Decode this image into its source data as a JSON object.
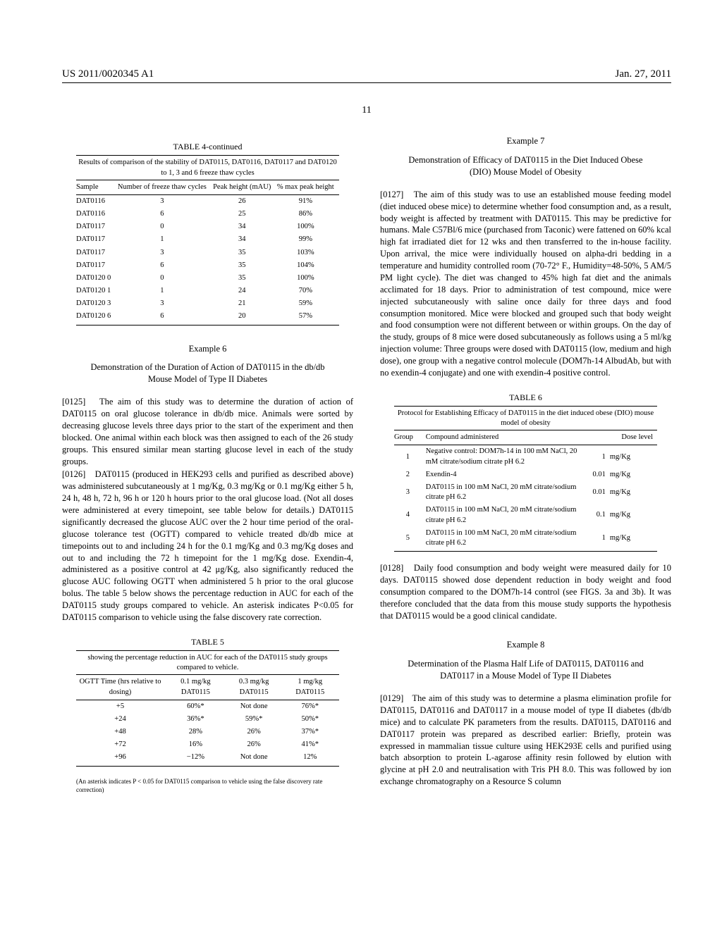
{
  "header": {
    "left": "US 2011/0020345 A1",
    "right": "Jan. 27, 2011"
  },
  "page_number": "11",
  "left_col": {
    "table4": {
      "caption": "TABLE 4-continued",
      "subcaption": "Results of comparison of the stability of DAT0115, DAT0116, DAT0117 and DAT0120 to 1, 3 and 6 freeze thaw cycles",
      "columns": [
        "Sample",
        "Number of freeze thaw cycles",
        "Peak height (mAU)",
        "% max peak height"
      ],
      "rows": [
        [
          "DAT0116",
          "3",
          "26",
          "91%"
        ],
        [
          "DAT0116",
          "6",
          "25",
          "86%"
        ],
        [
          "DAT0117",
          "0",
          "34",
          "100%"
        ],
        [
          "DAT0117",
          "1",
          "34",
          "99%"
        ],
        [
          "DAT0117",
          "3",
          "35",
          "103%"
        ],
        [
          "DAT0117",
          "6",
          "35",
          "104%"
        ],
        [
          "DAT0120 0",
          "0",
          "35",
          "100%"
        ],
        [
          "DAT0120 1",
          "1",
          "24",
          "70%"
        ],
        [
          "DAT0120 3",
          "3",
          "21",
          "59%"
        ],
        [
          "DAT0120 6",
          "6",
          "20",
          "57%"
        ]
      ]
    },
    "example6": {
      "label": "Example 6",
      "title": "Demonstration of the Duration of Action of DAT0115 in the db/db Mouse Model of Type II Diabetes"
    },
    "para0125_num": "[0125]",
    "para0125": "The aim of this study was to determine the duration of action of DAT0115 on oral glucose tolerance in db/db mice. Animals were sorted by decreasing glucose levels three days prior to the start of the experiment and then blocked. One animal within each block was then assigned to each of the 26 study groups. This ensured similar mean starting glucose level in each of the study groups.",
    "para0126_num": "[0126]",
    "para0126": "DAT0115 (produced in HEK293 cells and purified as described above) was administered subcutaneously at 1 mg/Kg, 0.3 mg/Kg or 0.1 mg/Kg either 5 h, 24 h, 48 h, 72 h, 96 h or 120 h hours prior to the oral glucose load. (Not all doses were administered at every timepoint, see table below for details.) DAT0115 significantly decreased the glucose AUC over the 2 hour time period of the oral-glucose tolerance test (OGTT) compared to vehicle treated db/db mice at timepoints out to and including 24 h for the 0.1 mg/Kg and 0.3 mg/Kg doses and out to and including the 72 h timepoint for the 1 mg/Kg dose. Exendin-4, administered as a positive control at 42 μg/Kg, also significantly reduced the glucose AUC following OGTT when administered 5 h prior to the oral glucose bolus. The table 5 below shows the percentage reduction in AUC for each of the DAT0115 study groups compared to vehicle. An asterisk indicates P<0.05 for DAT0115 comparison to vehicle using the false discovery rate correction.",
    "table5": {
      "caption": "TABLE 5",
      "subcaption": "showing the percentage reduction in AUC for each of the DAT0115 study groups compared to vehicle.",
      "columns": [
        "OGTT Time (hrs relative to dosing)",
        "0.1 mg/kg DAT0115",
        "0.3 mg/kg DAT0115",
        "1 mg/kg DAT0115"
      ],
      "rows": [
        [
          "+5",
          "60%*",
          "Not done",
          "76%*"
        ],
        [
          "+24",
          "36%*",
          "59%*",
          "50%*"
        ],
        [
          "+48",
          "28%",
          "26%",
          "37%*"
        ],
        [
          "+72",
          "16%",
          "26%",
          "41%*"
        ],
        [
          "+96",
          "−12%",
          "Not done",
          "12%"
        ]
      ],
      "footnote": "(An asterisk indicates P < 0.05 for DAT0115 comparison to vehicle using the false discovery rate correction)"
    }
  },
  "right_col": {
    "example7": {
      "label": "Example 7",
      "title": "Demonstration of Efficacy of DAT0115 in the Diet Induced Obese (DIO) Mouse Model of Obesity"
    },
    "para0127_num": "[0127]",
    "para0127": "The aim of this study was to use an established mouse feeding model (diet induced obese mice) to determine whether food consumption and, as a result, body weight is affected by treatment with DAT0115. This may be predictive for humans. Male C57Bl/6 mice (purchased from Taconic) were fattened on 60% kcal high fat irradiated diet for 12 wks and then transferred to the in-house facility. Upon arrival, the mice were individually housed on alpha-dri bedding in a temperature and humidity controlled room (70-72° F., Humidity=48-50%, 5 AM/5 PM light cycle). The diet was changed to 45% high fat diet and the animals acclimated for 18 days. Prior to administration of test compound, mice were injected subcutaneously with saline once daily for three days and food consumption monitored. Mice were blocked and grouped such that body weight and food consumption were not different between or within groups. On the day of the study, groups of 8 mice were dosed subcutaneously as follows using a 5 ml/kg injection volume: Three groups were dosed with DAT0115 (low, medium and high dose), one group with a negative control molecule (DOM7h-14 AlbudAb, but with no exendin-4 conjugate) and one with exendin-4 positive control.",
    "table6": {
      "caption": "TABLE 6",
      "subcaption": "Protocol for Establishing Efficacy of DAT0115 in the diet induced obese (DIO) mouse model of obesity",
      "columns": [
        "Group",
        "Compound administered",
        "Dose level"
      ],
      "rows": [
        [
          "1",
          "Negative control: DOM7h-14 in 100 mM NaCl, 20 mM citrate/sodium citrate pH 6.2",
          "1",
          "mg/Kg"
        ],
        [
          "2",
          "Exendin-4",
          "0.01",
          "mg/Kg"
        ],
        [
          "3",
          "DAT0115 in 100 mM NaCl, 20 mM citrate/sodium citrate pH 6.2",
          "0.01",
          "mg/Kg"
        ],
        [
          "4",
          "DAT0115 in 100 mM NaCl, 20 mM citrate/sodium citrate pH 6.2",
          "0.1",
          "mg/Kg"
        ],
        [
          "5",
          "DAT0115 in 100 mM NaCl, 20 mM citrate/sodium citrate pH 6.2",
          "1",
          "mg/Kg"
        ]
      ]
    },
    "para0128_num": "[0128]",
    "para0128": "Daily food consumption and body weight were measured daily for 10 days. DAT0115 showed dose dependent reduction in body weight and food consumption compared to the DOM7h-14 control (see FIGS. 3a and 3b). It was therefore concluded that the data from this mouse study supports the hypothesis that DAT0115 would be a good clinical candidate.",
    "example8": {
      "label": "Example 8",
      "title": "Determination of the Plasma Half Life of DAT0115, DAT0116 and DAT0117 in a Mouse Model of Type II Diabetes"
    },
    "para0129_num": "[0129]",
    "para0129": "The aim of this study was to determine a plasma elimination profile for DAT0115, DAT0116 and DAT0117 in a mouse model of type II diabetes (db/db mice) and to calculate PK parameters from the results. DAT0115, DAT0116 and DAT0117 protein was prepared as described earlier: Briefly, protein was expressed in mammalian tissue culture using HEK293E cells and purified using batch absorption to protein L-agarose affinity resin followed by elution with glycine at pH 2.0 and neutralisation with Tris PH 8.0. This was followed by ion exchange chromatography on a Resource S column"
  }
}
